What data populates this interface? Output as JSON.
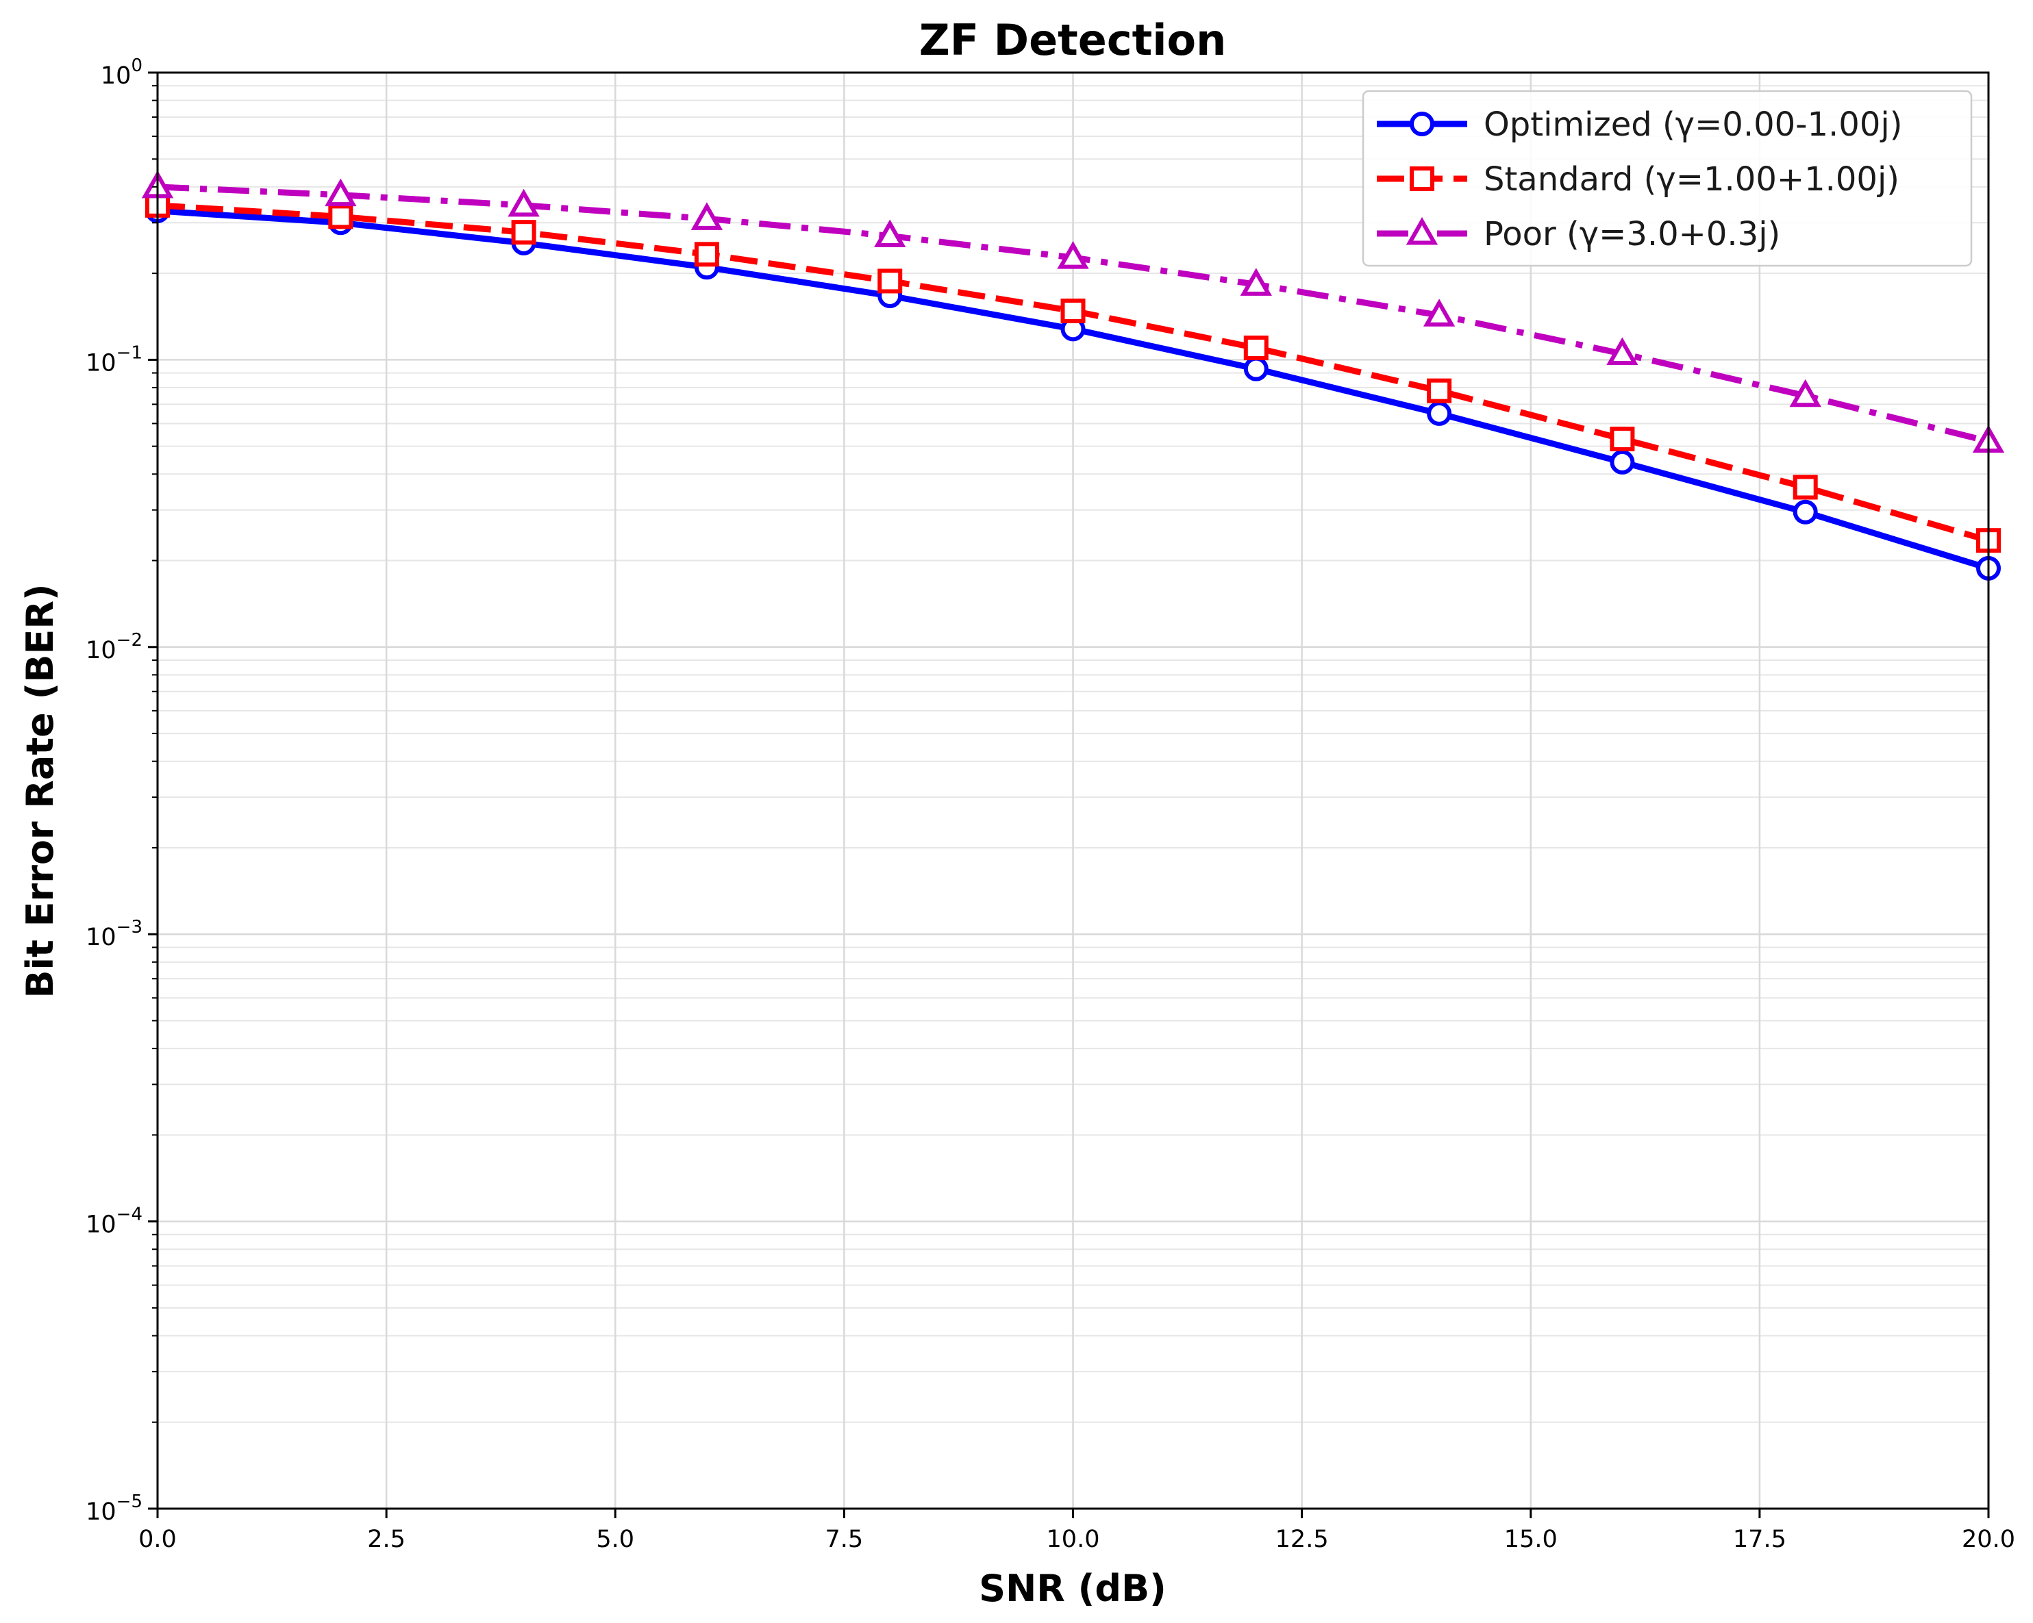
{
  "chart_data": {
    "type": "line",
    "title": "ZF Detection",
    "xlabel": "SNR (dB)",
    "ylabel": "Bit Error Rate (BER)",
    "xlim": [
      0,
      20
    ],
    "ylim": [
      1e-05,
      1
    ],
    "yscale": "log",
    "grid": true,
    "legend_position": "top-right",
    "x_ticks": [
      "0.0",
      "2.5",
      "5.0",
      "7.5",
      "10.0",
      "12.5",
      "15.0",
      "17.5",
      "20.0"
    ],
    "y_ticks": [
      {
        "base": "10",
        "exp": "0"
      },
      {
        "base": "10",
        "exp": "−1"
      },
      {
        "base": "10",
        "exp": "−2"
      },
      {
        "base": "10",
        "exp": "−3"
      },
      {
        "base": "10",
        "exp": "−4"
      },
      {
        "base": "10",
        "exp": "−5"
      }
    ],
    "x": [
      0,
      2,
      4,
      6,
      8,
      10,
      12,
      14,
      16,
      18,
      20
    ],
    "series": [
      {
        "name": "Optimized (γ=0.00-1.00j)",
        "color": "#0000ff",
        "line_style": "solid",
        "marker": "circle",
        "values": [
          0.33,
          0.3,
          0.255,
          0.21,
          0.167,
          0.128,
          0.093,
          0.065,
          0.044,
          0.0295,
          0.0188
        ]
      },
      {
        "name": "Standard (γ=1.00+1.00j)",
        "color": "#ff0000",
        "line_style": "dashed",
        "marker": "square",
        "values": [
          0.345,
          0.315,
          0.278,
          0.233,
          0.188,
          0.148,
          0.11,
          0.078,
          0.053,
          0.036,
          0.0235
        ]
      },
      {
        "name": "Poor (γ=3.0+0.3j)",
        "color": "#bf00bf",
        "line_style": "dashdot",
        "marker": "triangle",
        "values": [
          0.4,
          0.375,
          0.345,
          0.31,
          0.27,
          0.227,
          0.183,
          0.143,
          0.105,
          0.075,
          0.052
        ]
      }
    ]
  }
}
